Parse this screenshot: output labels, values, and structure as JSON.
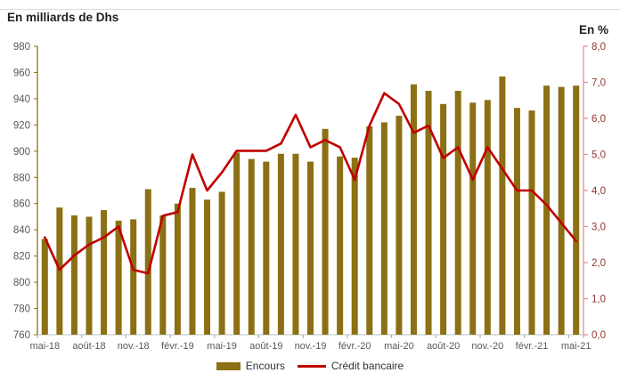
{
  "chart_data": {
    "type": "combo-bar-line",
    "categories": [
      "mai-18",
      "juin-18",
      "juil.-18",
      "août-18",
      "sept.-18",
      "oct.-18",
      "nov.-18",
      "déc.-18",
      "janv.-19",
      "févr.-19",
      "mars-19",
      "avr.-19",
      "mai-19",
      "juin-19",
      "juil.-19",
      "août-19",
      "sept.-19",
      "oct.-19",
      "nov.-19",
      "déc.-19",
      "janv.-20",
      "févr.-20",
      "mars-20",
      "avr.-20",
      "mai-20",
      "juin-20",
      "juil.-20",
      "août-20",
      "sept.-20",
      "oct.-20",
      "nov.-20",
      "déc.-20",
      "janv.-21",
      "févr.-21",
      "mars-21",
      "avr.-21",
      "mai-21"
    ],
    "x_tick_labels": [
      "mai-18",
      "août-18",
      "nov.-18",
      "févr.-19",
      "mai-19",
      "août-19",
      "nov.-19",
      "févr.-20",
      "mai-20",
      "août-20",
      "nov.-20",
      "févr.-21",
      "mai-21"
    ],
    "x_tick_interval": 3,
    "series": [
      {
        "name": "Encours",
        "type": "bar",
        "axis": "left",
        "color": "#8B7014",
        "values": [
          833,
          857,
          851,
          850,
          855,
          847,
          848,
          871,
          851,
          860,
          872,
          863,
          869,
          899,
          894,
          892,
          898,
          898,
          892,
          917,
          896,
          895,
          919,
          922,
          927,
          951,
          946,
          936,
          946,
          937,
          939,
          957,
          933,
          931,
          950,
          949,
          950
        ]
      },
      {
        "name": "Crédit bancaire",
        "type": "line",
        "axis": "right",
        "color": "#C00000",
        "values": [
          2.7,
          1.8,
          2.2,
          2.5,
          2.7,
          3.0,
          1.8,
          1.7,
          3.3,
          3.4,
          5.0,
          4.0,
          4.5,
          5.1,
          5.1,
          5.1,
          5.3,
          6.1,
          5.2,
          5.4,
          5.2,
          4.3,
          5.8,
          6.7,
          6.4,
          5.6,
          5.8,
          4.9,
          5.2,
          4.3,
          5.2,
          4.6,
          4.0,
          4.0,
          3.6,
          3.1,
          2.6
        ]
      }
    ],
    "left_axis": {
      "title": "En milliards de Dhs",
      "min": 760,
      "max": 980,
      "step": 20,
      "tick_labels": [
        "760",
        "780",
        "800",
        "820",
        "840",
        "860",
        "880",
        "900",
        "920",
        "940",
        "960",
        "980"
      ]
    },
    "right_axis": {
      "title": "En %",
      "min": 0,
      "max": 8,
      "step": 1,
      "tick_labels": [
        "0,0",
        "1,0",
        "2,0",
        "3,0",
        "4,0",
        "5,0",
        "6,0",
        "7,0",
        "8,0"
      ]
    },
    "grid": false,
    "legend_position": "bottom",
    "colors": {
      "bar": "#8B7014",
      "line": "#C00000",
      "left_axis_line": "#8B7014",
      "left_axis_text": "#595959",
      "right_axis_line": "#D99694",
      "right_axis_text": "#943634",
      "x_axis_line": "#BFBFBF",
      "x_axis_text": "#595959"
    }
  }
}
